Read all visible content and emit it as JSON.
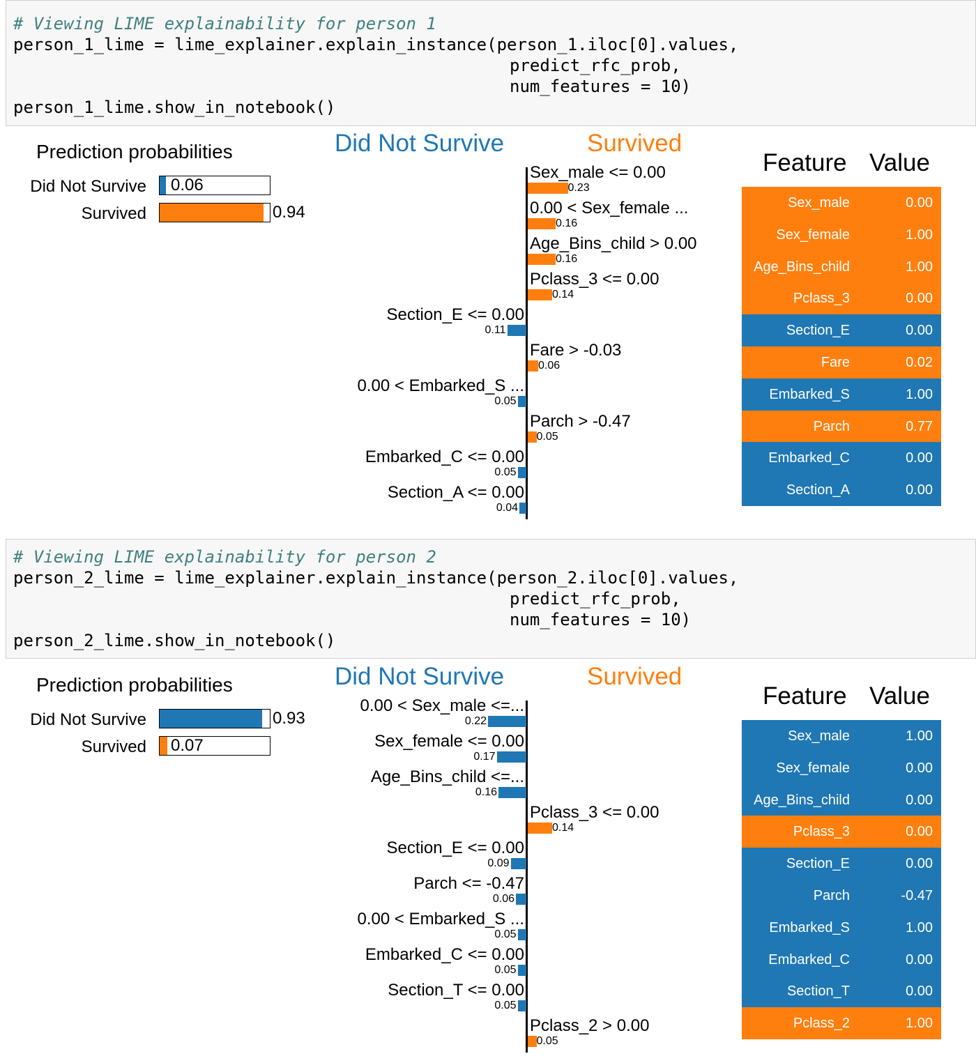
{
  "colors": {
    "blue": "#1f77b4",
    "orange": "#ff7f0e"
  },
  "cells": [
    {
      "code": {
        "comment": "# Viewing LIME explainability for person 1",
        "line2": "person_1_lime = lime_explainer.explain_instance(person_1.iloc[0].values,",
        "line3": "predict_rfc_prob,",
        "line4": "num_features = 10)",
        "line5": "person_1_lime.show_in_notebook()"
      },
      "output": {
        "prediction_title": "Prediction probabilities",
        "probabilities": [
          {
            "label": "Did Not Survive",
            "value": "0.06",
            "fraction": 0.06,
            "color": "blue"
          },
          {
            "label": "Survived",
            "value": "0.94",
            "fraction": 0.94,
            "color": "orange"
          }
        ],
        "class_neg": "Did Not Survive",
        "class_pos": "Survived",
        "features": [
          {
            "label": "Sex_male <= 0.00",
            "weight": "0.23",
            "magnitude": 0.23,
            "side": "pos"
          },
          {
            "label": "0.00 < Sex_female ...",
            "weight": "0.16",
            "magnitude": 0.16,
            "side": "pos"
          },
          {
            "label": "Age_Bins_child > 0.00",
            "weight": "0.16",
            "magnitude": 0.16,
            "side": "pos"
          },
          {
            "label": "Pclass_3 <= 0.00",
            "weight": "0.14",
            "magnitude": 0.14,
            "side": "pos"
          },
          {
            "label": "Section_E <= 0.00",
            "weight": "0.11",
            "magnitude": 0.11,
            "side": "neg"
          },
          {
            "label": "Fare > -0.03",
            "weight": "0.06",
            "magnitude": 0.06,
            "side": "pos"
          },
          {
            "label": "0.00 < Embarked_S ...",
            "weight": "0.05",
            "magnitude": 0.05,
            "side": "neg"
          },
          {
            "label": "Parch > -0.47",
            "weight": "0.05",
            "magnitude": 0.05,
            "side": "pos"
          },
          {
            "label": "Embarked_C <= 0.00",
            "weight": "0.05",
            "magnitude": 0.05,
            "side": "neg"
          },
          {
            "label": "Section_A <= 0.00",
            "weight": "0.04",
            "magnitude": 0.04,
            "side": "neg"
          }
        ],
        "table_header": {
          "feature": "Feature",
          "value": "Value"
        },
        "table": [
          {
            "feature": "Sex_male",
            "value": "0.00",
            "color": "orange"
          },
          {
            "feature": "Sex_female",
            "value": "1.00",
            "color": "orange"
          },
          {
            "feature": "Age_Bins_child",
            "value": "1.00",
            "color": "orange"
          },
          {
            "feature": "Pclass_3",
            "value": "0.00",
            "color": "orange"
          },
          {
            "feature": "Section_E",
            "value": "0.00",
            "color": "blue"
          },
          {
            "feature": "Fare",
            "value": "0.02",
            "color": "orange"
          },
          {
            "feature": "Embarked_S",
            "value": "1.00",
            "color": "blue"
          },
          {
            "feature": "Parch",
            "value": "0.77",
            "color": "orange"
          },
          {
            "feature": "Embarked_C",
            "value": "0.00",
            "color": "blue"
          },
          {
            "feature": "Section_A",
            "value": "0.00",
            "color": "blue"
          }
        ]
      }
    },
    {
      "code": {
        "comment": "# Viewing LIME explainability for person 2",
        "line2": "person_2_lime = lime_explainer.explain_instance(person_2.iloc[0].values,",
        "line3": "predict_rfc_prob,",
        "line4": "num_features = 10)",
        "line5": "person_2_lime.show_in_notebook()"
      },
      "output": {
        "prediction_title": "Prediction probabilities",
        "probabilities": [
          {
            "label": "Did Not Survive",
            "value": "0.93",
            "fraction": 0.93,
            "color": "blue"
          },
          {
            "label": "Survived",
            "value": "0.07",
            "fraction": 0.07,
            "color": "orange"
          }
        ],
        "class_neg": "Did Not Survive",
        "class_pos": "Survived",
        "features": [
          {
            "label": "0.00 < Sex_male <=...",
            "weight": "0.22",
            "magnitude": 0.22,
            "side": "neg"
          },
          {
            "label": "Sex_female <= 0.00",
            "weight": "0.17",
            "magnitude": 0.17,
            "side": "neg"
          },
          {
            "label": "Age_Bins_child <=...",
            "weight": "0.16",
            "magnitude": 0.16,
            "side": "neg"
          },
          {
            "label": "Pclass_3 <= 0.00",
            "weight": "0.14",
            "magnitude": 0.14,
            "side": "pos"
          },
          {
            "label": "Section_E <= 0.00",
            "weight": "0.09",
            "magnitude": 0.09,
            "side": "neg"
          },
          {
            "label": "Parch <= -0.47",
            "weight": "0.06",
            "magnitude": 0.06,
            "side": "neg"
          },
          {
            "label": "0.00 < Embarked_S ...",
            "weight": "0.05",
            "magnitude": 0.05,
            "side": "neg"
          },
          {
            "label": "Embarked_C <= 0.00",
            "weight": "0.05",
            "magnitude": 0.05,
            "side": "neg"
          },
          {
            "label": "Section_T <= 0.00",
            "weight": "0.05",
            "magnitude": 0.05,
            "side": "neg"
          },
          {
            "label": "Pclass_2 > 0.00",
            "weight": "0.05",
            "magnitude": 0.05,
            "side": "pos"
          }
        ],
        "table_header": {
          "feature": "Feature",
          "value": "Value"
        },
        "table": [
          {
            "feature": "Sex_male",
            "value": "1.00",
            "color": "blue"
          },
          {
            "feature": "Sex_female",
            "value": "0.00",
            "color": "blue"
          },
          {
            "feature": "Age_Bins_child",
            "value": "0.00",
            "color": "blue"
          },
          {
            "feature": "Pclass_3",
            "value": "0.00",
            "color": "orange"
          },
          {
            "feature": "Section_E",
            "value": "0.00",
            "color": "blue"
          },
          {
            "feature": "Parch",
            "value": "-0.47",
            "color": "blue"
          },
          {
            "feature": "Embarked_S",
            "value": "1.00",
            "color": "blue"
          },
          {
            "feature": "Embarked_C",
            "value": "0.00",
            "color": "blue"
          },
          {
            "feature": "Section_T",
            "value": "0.00",
            "color": "blue"
          },
          {
            "feature": "Pclass_2",
            "value": "1.00",
            "color": "orange"
          }
        ]
      }
    }
  ]
}
